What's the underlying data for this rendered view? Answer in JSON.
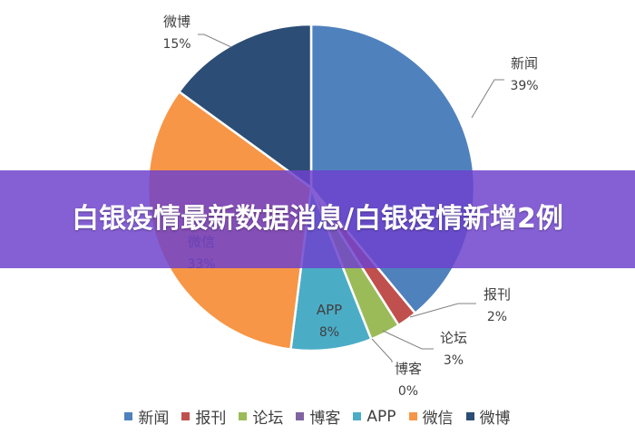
{
  "banner": {
    "title": "白银疫情最新数据消息/白银疫情新增2例"
  },
  "chart_data": {
    "type": "pie",
    "categories": [
      "新闻",
      "报刊",
      "论坛",
      "博客",
      "APP",
      "微信",
      "微博"
    ],
    "values": [
      39,
      2,
      3,
      0,
      8,
      33,
      15
    ],
    "labels": [
      "39%",
      "2%",
      "3%",
      "0%",
      "8%",
      "33%",
      "15%"
    ],
    "colors": [
      "#4F81BD",
      "#C0504D",
      "#9BBB59",
      "#8064A2",
      "#4BACC6",
      "#F79646",
      "#2C4D75"
    ],
    "legend_position": "bottom"
  }
}
